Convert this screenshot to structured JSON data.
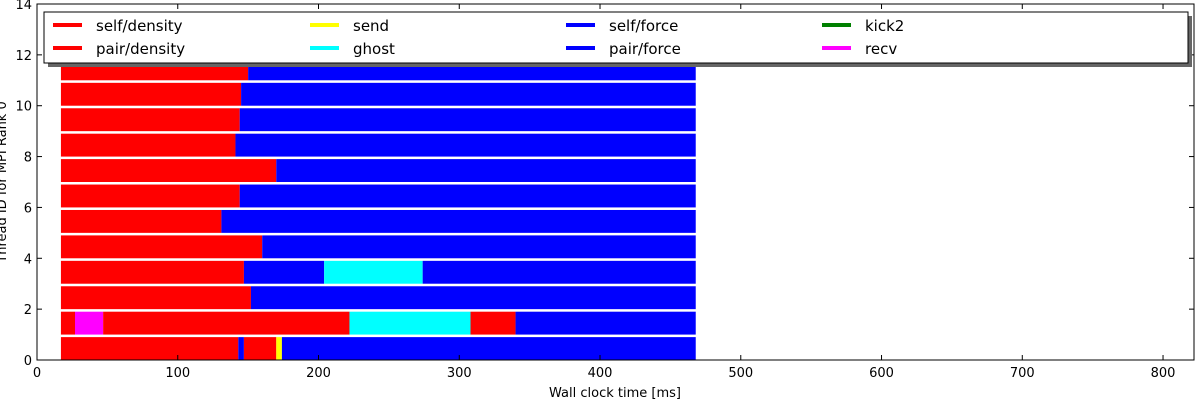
{
  "chart_data": {
    "type": "bar",
    "subtype": "task-timeline",
    "xlabel": "Wall clock time [ms]",
    "ylabel": "Thread ID for MPI Rank 0",
    "xlim": [
      0,
      822
    ],
    "ylim": [
      0,
      14
    ],
    "x_ticks": [
      0,
      100,
      200,
      300,
      400,
      500,
      600,
      700,
      800
    ],
    "y_ticks": [
      0,
      2,
      4,
      6,
      8,
      10,
      12,
      14
    ],
    "legend_position": "top",
    "legend_columns": 5,
    "legend": [
      {
        "name": "self/density",
        "color": "#ff0000"
      },
      {
        "name": "pair/density",
        "color": "#ff0000"
      },
      {
        "name": "send",
        "color": "#ffff00"
      },
      {
        "name": "ghost",
        "color": "#00ffff"
      },
      {
        "name": "self/force",
        "color": "#0000ff"
      },
      {
        "name": "pair/force",
        "color": "#0000ff"
      },
      {
        "name": "kick2",
        "color": "#008000"
      },
      {
        "name": "recv",
        "color": "#ff00ff"
      }
    ],
    "threads": [
      {
        "thread": 0,
        "segments": [
          {
            "task": "pair/density",
            "start": 17,
            "end": 143
          },
          {
            "task": "pair/force",
            "start": 143,
            "end": 147
          },
          {
            "task": "pair/density",
            "start": 147,
            "end": 170
          },
          {
            "task": "send",
            "start": 170,
            "end": 174
          },
          {
            "task": "pair/force",
            "start": 174,
            "end": 468
          }
        ]
      },
      {
        "thread": 1,
        "segments": [
          {
            "task": "pair/density",
            "start": 17,
            "end": 27
          },
          {
            "task": "recv",
            "start": 27,
            "end": 47
          },
          {
            "task": "pair/density",
            "start": 47,
            "end": 222
          },
          {
            "task": "ghost",
            "start": 222,
            "end": 308
          },
          {
            "task": "pair/density",
            "start": 308,
            "end": 340
          },
          {
            "task": "pair/force",
            "start": 340,
            "end": 468
          }
        ]
      },
      {
        "thread": 2,
        "segments": [
          {
            "task": "pair/density",
            "start": 17,
            "end": 152
          },
          {
            "task": "pair/force",
            "start": 152,
            "end": 468
          }
        ]
      },
      {
        "thread": 3,
        "segments": [
          {
            "task": "pair/density",
            "start": 17,
            "end": 147
          },
          {
            "task": "pair/force",
            "start": 147,
            "end": 204
          },
          {
            "task": "ghost",
            "start": 204,
            "end": 274
          },
          {
            "task": "pair/force",
            "start": 274,
            "end": 468
          }
        ]
      },
      {
        "thread": 4,
        "segments": [
          {
            "task": "pair/density",
            "start": 17,
            "end": 160
          },
          {
            "task": "pair/force",
            "start": 160,
            "end": 468
          }
        ]
      },
      {
        "thread": 5,
        "segments": [
          {
            "task": "pair/density",
            "start": 17,
            "end": 131
          },
          {
            "task": "pair/force",
            "start": 131,
            "end": 468
          }
        ]
      },
      {
        "thread": 6,
        "segments": [
          {
            "task": "pair/density",
            "start": 17,
            "end": 144
          },
          {
            "task": "pair/force",
            "start": 144,
            "end": 468
          }
        ]
      },
      {
        "thread": 7,
        "segments": [
          {
            "task": "pair/density",
            "start": 17,
            "end": 170
          },
          {
            "task": "pair/force",
            "start": 170,
            "end": 468
          }
        ]
      },
      {
        "thread": 8,
        "segments": [
          {
            "task": "pair/density",
            "start": 17,
            "end": 141
          },
          {
            "task": "pair/force",
            "start": 141,
            "end": 468
          }
        ]
      },
      {
        "thread": 9,
        "segments": [
          {
            "task": "pair/density",
            "start": 17,
            "end": 144
          },
          {
            "task": "pair/force",
            "start": 144,
            "end": 468
          }
        ]
      },
      {
        "thread": 10,
        "segments": [
          {
            "task": "pair/density",
            "start": 17,
            "end": 145
          },
          {
            "task": "pair/force",
            "start": 145,
            "end": 468
          }
        ]
      },
      {
        "thread": 11,
        "segments": [
          {
            "task": "pair/density",
            "start": 17,
            "end": 150
          },
          {
            "task": "pair/force",
            "start": 150,
            "end": 468
          }
        ]
      }
    ]
  }
}
